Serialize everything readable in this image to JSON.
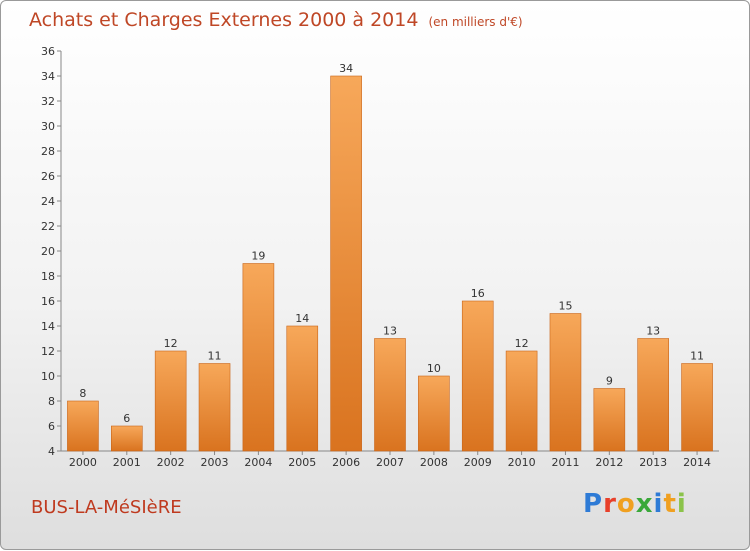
{
  "header": {
    "title": "Achats et Charges Externes 2000 à 2014",
    "subtitle": "(en milliers d'€)"
  },
  "footer": {
    "town": "BUS-LA-MéSIèRE",
    "brand": "Proxiti",
    "brand_colors": [
      "#2e7bd6",
      "#e8402a",
      "#f0a020",
      "#3aa83a",
      "#2e7bd6",
      "#f0a020",
      "#8bc34a"
    ]
  },
  "colors": {
    "bar_light": "#f7a85a",
    "bar_dark": "#d9731f",
    "title": "#bf4726"
  },
  "chart_data": {
    "type": "bar",
    "categories": [
      "2000",
      "2001",
      "2002",
      "2003",
      "2004",
      "2005",
      "2006",
      "2007",
      "2008",
      "2009",
      "2010",
      "2011",
      "2012",
      "2013",
      "2014"
    ],
    "values": [
      8,
      6,
      12,
      11,
      19,
      14,
      34,
      13,
      10,
      16,
      12,
      15,
      9,
      13,
      11
    ],
    "ylim": [
      4,
      36
    ],
    "yticks": [
      4,
      6,
      8,
      10,
      12,
      14,
      16,
      18,
      20,
      22,
      24,
      26,
      28,
      30,
      32,
      34,
      36
    ],
    "grid": false
  }
}
